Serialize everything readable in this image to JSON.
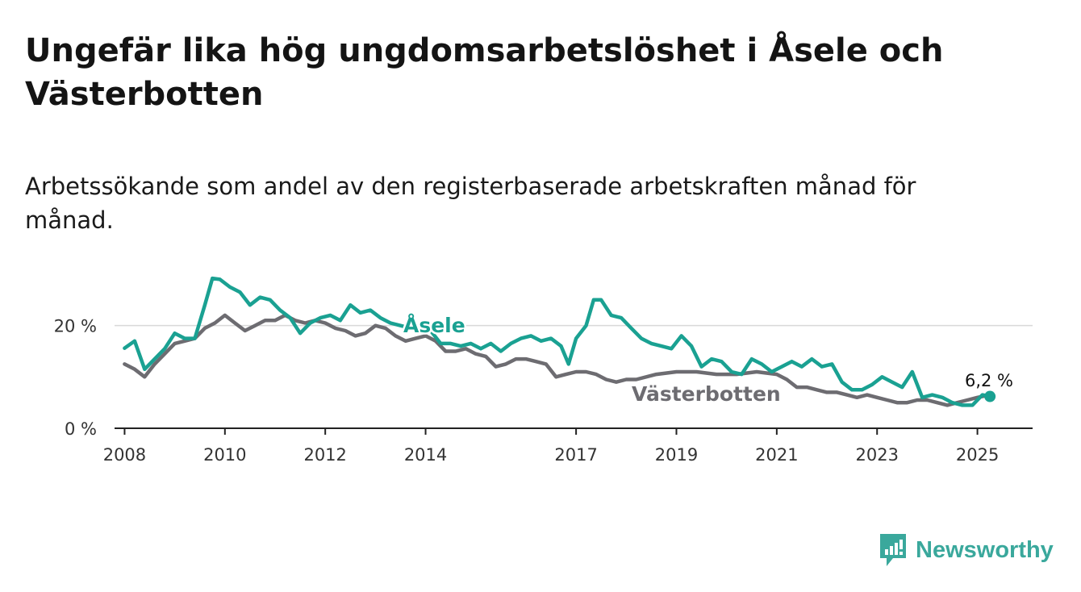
{
  "header": {
    "title": "Ungefär lika hög ungdomsarbetslöshet i Åsele och Västerbotten",
    "subtitle": "Arbetssökande som andel av den registerbaserade arbetskraften månad för månad."
  },
  "brand": {
    "name": "Newsworthy",
    "icon": "newsworthy-logo-icon",
    "color": "#3aa89c"
  },
  "chart_data": {
    "type": "line",
    "title": "Ungefär lika hög ungdomsarbetslöshet i Åsele och Västerbotten",
    "subtitle": "Arbetssökande som andel av den registerbaserade arbetskraften månad för månad.",
    "x_ticks": [
      "2008",
      "2010",
      "2012",
      "2014",
      "2017",
      "2019",
      "2021",
      "2023",
      "2025"
    ],
    "y_ticks": [
      {
        "value": 0,
        "label": "0 %"
      },
      {
        "value": 20,
        "label": "20 %"
      }
    ],
    "xlim": [
      2007.8,
      2026.1
    ],
    "ylim": [
      0,
      30
    ],
    "grid": "horizontal",
    "end_label": "6,2 %",
    "series": [
      {
        "name": "Åsele",
        "color": "#1aa192",
        "points": [
          [
            2008.0,
            15.6
          ],
          [
            2008.2,
            17.0
          ],
          [
            2008.4,
            11.5
          ],
          [
            2008.6,
            13.5
          ],
          [
            2008.8,
            15.5
          ],
          [
            2009.0,
            18.5
          ],
          [
            2009.2,
            17.5
          ],
          [
            2009.4,
            17.5
          ],
          [
            2009.6,
            24.0
          ],
          [
            2009.75,
            29.2
          ],
          [
            2009.9,
            29.0
          ],
          [
            2010.1,
            27.5
          ],
          [
            2010.3,
            26.5
          ],
          [
            2010.5,
            24.0
          ],
          [
            2010.7,
            25.5
          ],
          [
            2010.9,
            25.0
          ],
          [
            2011.1,
            23.0
          ],
          [
            2011.3,
            21.5
          ],
          [
            2011.5,
            18.5
          ],
          [
            2011.7,
            20.5
          ],
          [
            2011.9,
            21.5
          ],
          [
            2012.1,
            22.0
          ],
          [
            2012.3,
            21.0
          ],
          [
            2012.5,
            24.0
          ],
          [
            2012.7,
            22.5
          ],
          [
            2012.9,
            23.0
          ],
          [
            2013.1,
            21.5
          ],
          [
            2013.3,
            20.5
          ],
          [
            2013.5,
            20.0
          ],
          [
            2013.7,
            19.5
          ],
          [
            2013.9,
            19.0
          ],
          [
            2014.1,
            19.0
          ],
          [
            2014.3,
            16.5
          ],
          [
            2014.5,
            16.5
          ],
          [
            2014.7,
            16.0
          ],
          [
            2014.9,
            16.5
          ],
          [
            2015.1,
            15.5
          ],
          [
            2015.3,
            16.5
          ],
          [
            2015.5,
            15.0
          ],
          [
            2015.7,
            16.5
          ],
          [
            2015.9,
            17.5
          ],
          [
            2016.1,
            18.0
          ],
          [
            2016.3,
            17.0
          ],
          [
            2016.5,
            17.5
          ],
          [
            2016.7,
            16.0
          ],
          [
            2016.85,
            12.5
          ],
          [
            2017.0,
            17.5
          ],
          [
            2017.2,
            20.0
          ],
          [
            2017.35,
            25.0
          ],
          [
            2017.5,
            25.0
          ],
          [
            2017.7,
            22.0
          ],
          [
            2017.9,
            21.5
          ],
          [
            2018.1,
            19.5
          ],
          [
            2018.3,
            17.5
          ],
          [
            2018.5,
            16.5
          ],
          [
            2018.7,
            16.0
          ],
          [
            2018.9,
            15.5
          ],
          [
            2019.1,
            18.0
          ],
          [
            2019.3,
            16.0
          ],
          [
            2019.5,
            12.0
          ],
          [
            2019.7,
            13.5
          ],
          [
            2019.9,
            13.0
          ],
          [
            2020.1,
            11.0
          ],
          [
            2020.3,
            10.5
          ],
          [
            2020.5,
            13.5
          ],
          [
            2020.7,
            12.5
          ],
          [
            2020.9,
            11.0
          ],
          [
            2021.1,
            12.0
          ],
          [
            2021.3,
            13.0
          ],
          [
            2021.5,
            12.0
          ],
          [
            2021.7,
            13.5
          ],
          [
            2021.9,
            12.0
          ],
          [
            2022.1,
            12.5
          ],
          [
            2022.3,
            9.0
          ],
          [
            2022.5,
            7.5
          ],
          [
            2022.7,
            7.5
          ],
          [
            2022.9,
            8.5
          ],
          [
            2023.1,
            10.0
          ],
          [
            2023.3,
            9.0
          ],
          [
            2023.5,
            8.0
          ],
          [
            2023.7,
            11.0
          ],
          [
            2023.9,
            6.0
          ],
          [
            2024.1,
            6.5
          ],
          [
            2024.3,
            6.0
          ],
          [
            2024.5,
            5.0
          ],
          [
            2024.7,
            4.5
          ],
          [
            2024.9,
            4.5
          ],
          [
            2025.1,
            6.5
          ],
          [
            2025.25,
            6.2
          ]
        ]
      },
      {
        "name": "Västerbotten",
        "color": "#6d6c71",
        "points": [
          [
            2008.0,
            12.5
          ],
          [
            2008.2,
            11.5
          ],
          [
            2008.4,
            10.0
          ],
          [
            2008.6,
            12.5
          ],
          [
            2008.8,
            14.5
          ],
          [
            2009.0,
            16.5
          ],
          [
            2009.2,
            17.0
          ],
          [
            2009.4,
            17.5
          ],
          [
            2009.6,
            19.5
          ],
          [
            2009.8,
            20.5
          ],
          [
            2010.0,
            22.0
          ],
          [
            2010.2,
            20.5
          ],
          [
            2010.4,
            19.0
          ],
          [
            2010.6,
            20.0
          ],
          [
            2010.8,
            21.0
          ],
          [
            2011.0,
            21.0
          ],
          [
            2011.2,
            22.0
          ],
          [
            2011.4,
            21.0
          ],
          [
            2011.6,
            20.5
          ],
          [
            2011.8,
            21.0
          ],
          [
            2012.0,
            20.5
          ],
          [
            2012.2,
            19.5
          ],
          [
            2012.4,
            19.0
          ],
          [
            2012.6,
            18.0
          ],
          [
            2012.8,
            18.5
          ],
          [
            2013.0,
            20.0
          ],
          [
            2013.2,
            19.5
          ],
          [
            2013.4,
            18.0
          ],
          [
            2013.6,
            17.0
          ],
          [
            2013.8,
            17.5
          ],
          [
            2014.0,
            18.0
          ],
          [
            2014.2,
            17.0
          ],
          [
            2014.4,
            15.0
          ],
          [
            2014.6,
            15.0
          ],
          [
            2014.8,
            15.5
          ],
          [
            2015.0,
            14.5
          ],
          [
            2015.2,
            14.0
          ],
          [
            2015.4,
            12.0
          ],
          [
            2015.6,
            12.5
          ],
          [
            2015.8,
            13.5
          ],
          [
            2016.0,
            13.5
          ],
          [
            2016.2,
            13.0
          ],
          [
            2016.4,
            12.5
          ],
          [
            2016.6,
            10.0
          ],
          [
            2016.8,
            10.5
          ],
          [
            2017.0,
            11.0
          ],
          [
            2017.2,
            11.0
          ],
          [
            2017.4,
            10.5
          ],
          [
            2017.6,
            9.5
          ],
          [
            2017.8,
            9.0
          ],
          [
            2018.0,
            9.5
          ],
          [
            2018.2,
            9.5
          ],
          [
            2018.6,
            10.5
          ],
          [
            2019.0,
            11.0
          ],
          [
            2019.4,
            11.0
          ],
          [
            2019.8,
            10.5
          ],
          [
            2020.2,
            10.5
          ],
          [
            2020.6,
            11.0
          ],
          [
            2021.0,
            10.5
          ],
          [
            2021.2,
            9.5
          ],
          [
            2021.4,
            8.0
          ],
          [
            2021.6,
            8.0
          ],
          [
            2021.8,
            7.5
          ],
          [
            2022.0,
            7.0
          ],
          [
            2022.2,
            7.0
          ],
          [
            2022.4,
            6.5
          ],
          [
            2022.6,
            6.0
          ],
          [
            2022.8,
            6.5
          ],
          [
            2023.0,
            6.0
          ],
          [
            2023.2,
            5.5
          ],
          [
            2023.4,
            5.0
          ],
          [
            2023.6,
            5.0
          ],
          [
            2023.8,
            5.5
          ],
          [
            2024.0,
            5.5
          ],
          [
            2024.2,
            5.0
          ],
          [
            2024.4,
            4.5
          ],
          [
            2024.6,
            5.0
          ],
          [
            2024.8,
            5.5
          ],
          [
            2025.0,
            6.0
          ],
          [
            2025.25,
            6.5
          ]
        ]
      }
    ]
  }
}
